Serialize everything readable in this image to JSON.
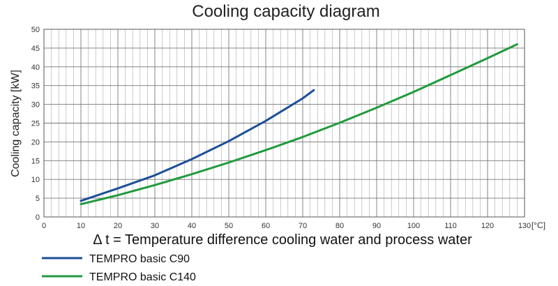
{
  "chart_data": {
    "type": "line",
    "title": "Cooling capacity diagram",
    "xlabel": "Δ t = Temperature difference cooling water and process water",
    "ylabel": "Cooling capacity [kW]",
    "x_unit": "[°C]",
    "xlim": [
      0,
      130
    ],
    "ylim": [
      0,
      50
    ],
    "x_ticks": [
      0,
      10,
      20,
      30,
      40,
      50,
      60,
      70,
      80,
      90,
      100,
      110,
      120,
      130
    ],
    "y_ticks": [
      0,
      5,
      10,
      15,
      20,
      25,
      30,
      35,
      40,
      45,
      50
    ],
    "grid": true,
    "legend_position": "bottom-left",
    "series": [
      {
        "name": "TEMPRO basic C90",
        "color": "#1c4f96",
        "x": [
          10,
          20,
          30,
          40,
          50,
          60,
          70,
          73
        ],
        "y": [
          4.3,
          7.6,
          11.1,
          15.4,
          20.2,
          25.6,
          31.6,
          33.8
        ]
      },
      {
        "name": "TEMPRO basic C140",
        "color": "#1f9a3c",
        "x": [
          10,
          20,
          30,
          40,
          50,
          60,
          70,
          80,
          90,
          100,
          110,
          120,
          128
        ],
        "y": [
          3.4,
          5.8,
          8.5,
          11.4,
          14.5,
          17.8,
          21.3,
          25.1,
          29.1,
          33.3,
          37.8,
          42.3,
          46
        ]
      }
    ]
  }
}
